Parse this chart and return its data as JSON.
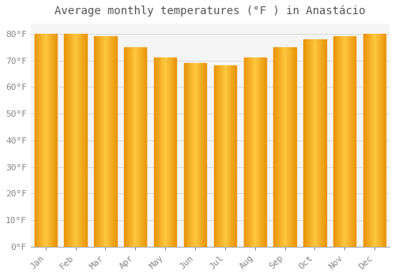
{
  "title": "Average monthly temperatures (°F ) in Anastácio",
  "months": [
    "Jan",
    "Feb",
    "Mar",
    "Apr",
    "May",
    "Jun",
    "Jul",
    "Aug",
    "Sep",
    "Oct",
    "Nov",
    "Dec"
  ],
  "values": [
    80,
    80,
    79,
    75,
    71,
    69,
    68,
    71,
    75,
    78,
    79,
    80
  ],
  "bar_color_left": "#E8940A",
  "bar_color_center": "#FFB833",
  "bar_color_right": "#E8940A",
  "background_color": "#FFFFFF",
  "plot_bg_color": "#F5F5F5",
  "grid_color": "#DDDDDD",
  "ylim": [
    0,
    84
  ],
  "yticks": [
    0,
    10,
    20,
    30,
    40,
    50,
    60,
    70,
    80
  ],
  "title_fontsize": 10,
  "tick_fontsize": 8,
  "title_color": "#555555",
  "tick_color": "#888888",
  "bar_width": 0.75
}
